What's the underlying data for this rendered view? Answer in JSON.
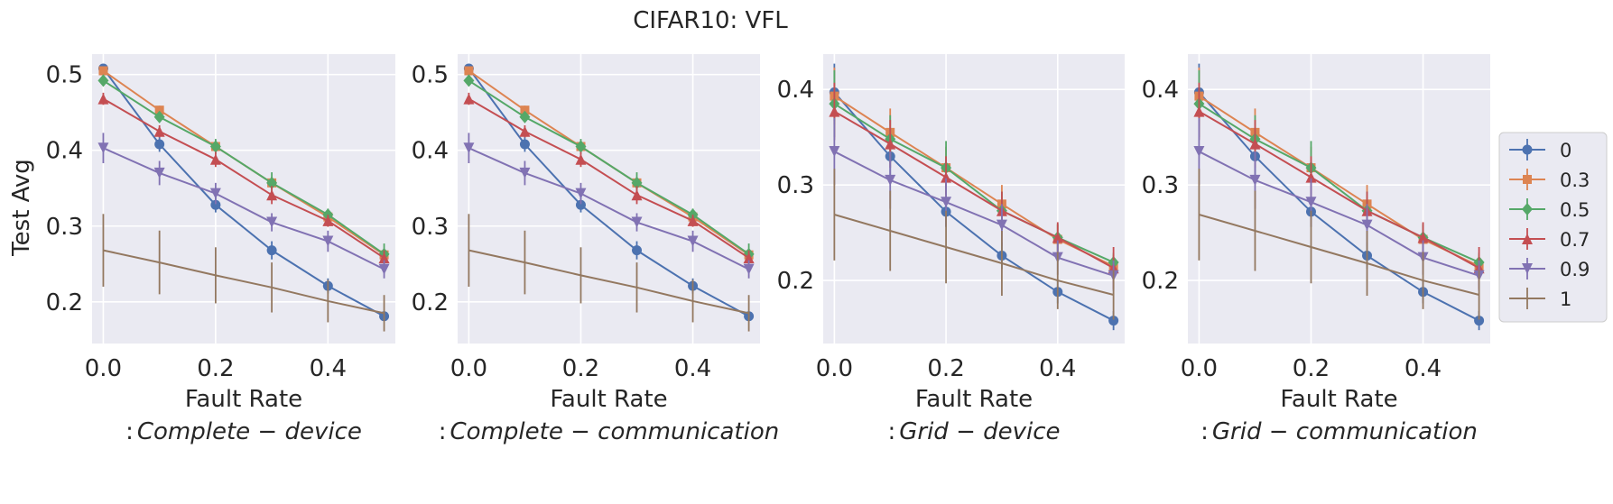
{
  "figure": {
    "title": "CIFAR10: VFL",
    "ylabel": "Test Avg",
    "xlabel": "Fault Rate"
  },
  "legend": {
    "position": "right",
    "entries": [
      {
        "label": "0",
        "color": "#4c72b0",
        "marker": "circle"
      },
      {
        "label": "0.3",
        "color": "#dd8452",
        "marker": "square"
      },
      {
        "label": "0.5",
        "color": "#55a868",
        "marker": "diamond"
      },
      {
        "label": "0.7",
        "color": "#c44e52",
        "marker": "triangle-up"
      },
      {
        "label": "0.9",
        "color": "#8172b3",
        "marker": "triangle-down"
      },
      {
        "label": "1",
        "color": "#937860",
        "marker": "none"
      }
    ]
  },
  "chart_data": [
    {
      "type": "line",
      "subtitle_prefix": ":",
      "subtitle_italic": "Complete − device",
      "xlabel": "Fault Rate",
      "ylabel": "Test Avg",
      "xlim": [
        -0.02,
        0.52
      ],
      "ylim": [
        0.145,
        0.527
      ],
      "xticks": [
        0.0,
        0.2,
        0.4
      ],
      "xtick_labels": [
        "0.0",
        "0.2",
        "0.4"
      ],
      "yticks": [
        0.2,
        0.3,
        0.4,
        0.5
      ],
      "ytick_labels": [
        "0.2",
        "0.3",
        "0.4",
        "0.5"
      ],
      "x": [
        0.0,
        0.1,
        0.2,
        0.3,
        0.4,
        0.5
      ],
      "series": [
        {
          "name": "0",
          "values": [
            0.508,
            0.408,
            0.328,
            0.268,
            0.221,
            0.181
          ],
          "errors": [
            0.005,
            0.01,
            0.01,
            0.012,
            0.01,
            0.006
          ]
        },
        {
          "name": "0.3",
          "values": [
            0.505,
            0.453,
            0.405,
            0.357,
            0.312,
            0.262
          ],
          "errors": [
            0.005,
            0.006,
            0.006,
            0.008,
            0.008,
            0.008
          ]
        },
        {
          "name": "0.5",
          "values": [
            0.492,
            0.444,
            0.405,
            0.357,
            0.315,
            0.263
          ],
          "errors": [
            0.005,
            0.007,
            0.01,
            0.014,
            0.008,
            0.014
          ]
        },
        {
          "name": "0.7",
          "values": [
            0.468,
            0.425,
            0.388,
            0.341,
            0.307,
            0.258
          ],
          "errors": [
            0.008,
            0.008,
            0.01,
            0.012,
            0.008,
            0.01
          ]
        },
        {
          "name": "0.9",
          "values": [
            0.403,
            0.37,
            0.343,
            0.305,
            0.28,
            0.243
          ],
          "errors": [
            0.02,
            0.016,
            0.014,
            0.012,
            0.014,
            0.012
          ]
        },
        {
          "name": "1",
          "values": [
            0.268,
            0.252,
            0.235,
            0.219,
            0.201,
            0.185
          ],
          "errors": [
            0.048,
            0.042,
            0.037,
            0.033,
            0.028,
            0.024
          ]
        }
      ]
    },
    {
      "type": "line",
      "subtitle_prefix": ":",
      "subtitle_italic": "Complete − communication",
      "xlabel": "Fault Rate",
      "ylabel": "",
      "xlim": [
        -0.02,
        0.52
      ],
      "ylim": [
        0.145,
        0.527
      ],
      "xticks": [
        0.0,
        0.2,
        0.4
      ],
      "xtick_labels": [
        "0.0",
        "0.2",
        "0.4"
      ],
      "yticks": [
        0.2,
        0.3,
        0.4,
        0.5
      ],
      "ytick_labels": [
        "0.2",
        "0.3",
        "0.4",
        "0.5"
      ],
      "x": [
        0.0,
        0.1,
        0.2,
        0.3,
        0.4,
        0.5
      ],
      "series": [
        {
          "name": "0",
          "values": [
            0.508,
            0.408,
            0.328,
            0.268,
            0.221,
            0.181
          ],
          "errors": [
            0.005,
            0.01,
            0.01,
            0.012,
            0.01,
            0.006
          ]
        },
        {
          "name": "0.3",
          "values": [
            0.505,
            0.453,
            0.405,
            0.357,
            0.312,
            0.262
          ],
          "errors": [
            0.005,
            0.006,
            0.006,
            0.008,
            0.008,
            0.008
          ]
        },
        {
          "name": "0.5",
          "values": [
            0.492,
            0.444,
            0.405,
            0.357,
            0.315,
            0.263
          ],
          "errors": [
            0.005,
            0.007,
            0.01,
            0.014,
            0.008,
            0.014
          ]
        },
        {
          "name": "0.7",
          "values": [
            0.468,
            0.425,
            0.388,
            0.341,
            0.307,
            0.258
          ],
          "errors": [
            0.008,
            0.008,
            0.01,
            0.012,
            0.008,
            0.01
          ]
        },
        {
          "name": "0.9",
          "values": [
            0.403,
            0.37,
            0.343,
            0.305,
            0.28,
            0.243
          ],
          "errors": [
            0.02,
            0.016,
            0.014,
            0.012,
            0.014,
            0.012
          ]
        },
        {
          "name": "1",
          "values": [
            0.268,
            0.252,
            0.235,
            0.219,
            0.201,
            0.185
          ],
          "errors": [
            0.048,
            0.042,
            0.037,
            0.033,
            0.028,
            0.024
          ]
        }
      ]
    },
    {
      "type": "line",
      "subtitle_prefix": ":",
      "subtitle_italic": "Grid − device",
      "xlabel": "Fault Rate",
      "ylabel": "",
      "xlim": [
        -0.02,
        0.52
      ],
      "ylim": [
        0.134,
        0.437
      ],
      "xticks": [
        0.0,
        0.2,
        0.4
      ],
      "xtick_labels": [
        "0.0",
        "0.2",
        "0.4"
      ],
      "yticks": [
        0.2,
        0.3,
        0.4
      ],
      "ytick_labels": [
        "0.2",
        "0.3",
        "0.4"
      ],
      "x": [
        0.0,
        0.1,
        0.2,
        0.3,
        0.4,
        0.5
      ],
      "series": [
        {
          "name": "0",
          "values": [
            0.397,
            0.33,
            0.272,
            0.226,
            0.188,
            0.158
          ],
          "errors": [
            0.03,
            0.02,
            0.016,
            0.014,
            0.012,
            0.01
          ]
        },
        {
          "name": "0.3",
          "values": [
            0.393,
            0.355,
            0.318,
            0.28,
            0.243,
            0.215
          ],
          "errors": [
            0.03,
            0.025,
            0.022,
            0.02,
            0.016,
            0.012
          ]
        },
        {
          "name": "0.5",
          "values": [
            0.385,
            0.348,
            0.318,
            0.273,
            0.245,
            0.219
          ],
          "errors": [
            0.035,
            0.025,
            0.028,
            0.02,
            0.014,
            0.01
          ]
        },
        {
          "name": "0.7",
          "values": [
            0.377,
            0.343,
            0.308,
            0.273,
            0.245,
            0.213
          ],
          "errors": [
            0.03,
            0.025,
            0.022,
            0.02,
            0.016,
            0.022
          ]
        },
        {
          "name": "0.9",
          "values": [
            0.335,
            0.305,
            0.282,
            0.258,
            0.224,
            0.205
          ],
          "errors": [
            0.035,
            0.03,
            0.025,
            0.022,
            0.018,
            0.016
          ]
        },
        {
          "name": "1",
          "values": [
            0.269,
            0.252,
            0.235,
            0.218,
            0.2,
            0.185
          ],
          "errors": [
            0.048,
            0.042,
            0.038,
            0.034,
            0.03,
            0.026
          ]
        }
      ]
    },
    {
      "type": "line",
      "subtitle_prefix": ":",
      "subtitle_italic": "Grid − communication",
      "xlabel": "Fault Rate",
      "ylabel": "",
      "xlim": [
        -0.02,
        0.52
      ],
      "ylim": [
        0.134,
        0.437
      ],
      "xticks": [
        0.0,
        0.2,
        0.4
      ],
      "xtick_labels": [
        "0.0",
        "0.2",
        "0.4"
      ],
      "yticks": [
        0.2,
        0.3,
        0.4
      ],
      "ytick_labels": [
        "0.2",
        "0.3",
        "0.4"
      ],
      "x": [
        0.0,
        0.1,
        0.2,
        0.3,
        0.4,
        0.5
      ],
      "series": [
        {
          "name": "0",
          "values": [
            0.397,
            0.33,
            0.272,
            0.226,
            0.188,
            0.158
          ],
          "errors": [
            0.03,
            0.02,
            0.016,
            0.014,
            0.012,
            0.01
          ]
        },
        {
          "name": "0.3",
          "values": [
            0.393,
            0.355,
            0.318,
            0.28,
            0.243,
            0.215
          ],
          "errors": [
            0.03,
            0.025,
            0.022,
            0.02,
            0.016,
            0.012
          ]
        },
        {
          "name": "0.5",
          "values": [
            0.385,
            0.348,
            0.318,
            0.273,
            0.245,
            0.219
          ],
          "errors": [
            0.035,
            0.025,
            0.028,
            0.02,
            0.014,
            0.01
          ]
        },
        {
          "name": "0.7",
          "values": [
            0.377,
            0.343,
            0.308,
            0.273,
            0.245,
            0.213
          ],
          "errors": [
            0.03,
            0.025,
            0.022,
            0.02,
            0.016,
            0.022
          ]
        },
        {
          "name": "0.9",
          "values": [
            0.335,
            0.305,
            0.282,
            0.258,
            0.224,
            0.205
          ],
          "errors": [
            0.035,
            0.03,
            0.025,
            0.022,
            0.018,
            0.016
          ]
        },
        {
          "name": "1",
          "values": [
            0.269,
            0.252,
            0.235,
            0.218,
            0.2,
            0.185
          ],
          "errors": [
            0.048,
            0.042,
            0.038,
            0.034,
            0.03,
            0.026
          ]
        }
      ]
    }
  ]
}
